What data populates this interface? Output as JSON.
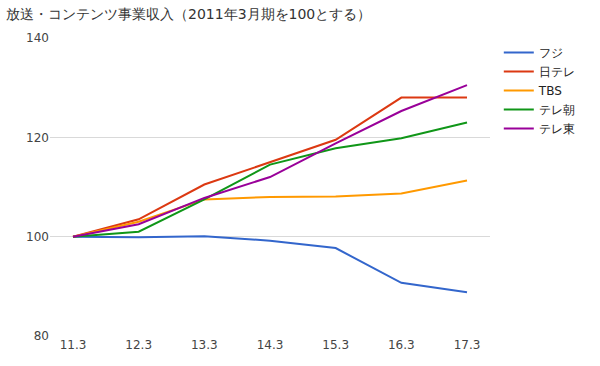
{
  "chart_data": {
    "type": "line",
    "title": "放送・コンテンツ事業収入（2011年3月期を100とする）",
    "categories": [
      "11.3",
      "12.3",
      "13.3",
      "14.3",
      "15.3",
      "16.3",
      "17.3"
    ],
    "series": [
      {
        "name": "フジ",
        "color": "#3366cc",
        "values": [
          100,
          99.9,
          100.1,
          99.2,
          97.7,
          90.7,
          88.8
        ]
      },
      {
        "name": "日テレ",
        "color": "#dc3912",
        "values": [
          100,
          103.5,
          110.5,
          115,
          119.5,
          128,
          128
        ]
      },
      {
        "name": "TBS",
        "color": "#ff9900",
        "values": [
          100,
          103,
          107.5,
          108,
          108.1,
          108.7,
          111.3
        ]
      },
      {
        "name": "テレ朝",
        "color": "#109618",
        "values": [
          100,
          101,
          107.5,
          114.5,
          117.8,
          119.8,
          123
        ]
      },
      {
        "name": "テレ東",
        "color": "#990099",
        "values": [
          100,
          102.5,
          107.8,
          112,
          118.8,
          125.3,
          130.5
        ]
      }
    ],
    "ylim": [
      80,
      140
    ],
    "yticks": [
      80,
      100,
      120,
      140
    ],
    "grid": true,
    "legend": "right"
  }
}
